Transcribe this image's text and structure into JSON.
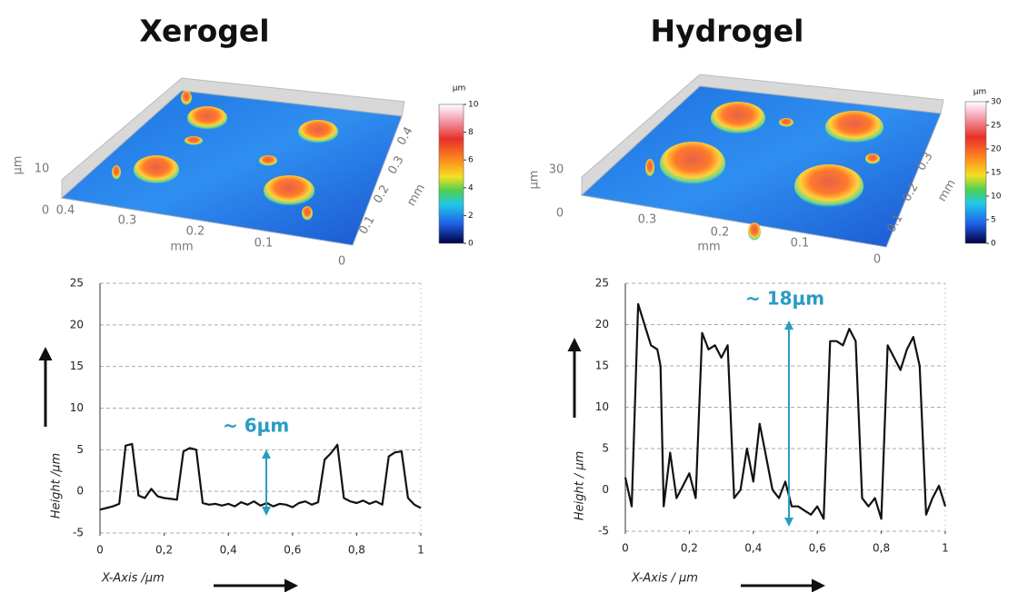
{
  "chart_data": [
    {
      "type": "line",
      "title": "Xerogel",
      "surface": {
        "unit_label": "μm",
        "colorbar_lim": [
          0,
          10
        ],
        "colorbar_ticks": [
          0,
          2,
          4,
          6,
          8,
          10
        ],
        "z_label": "μm",
        "z_ticks": [
          10,
          0
        ],
        "x_label": "mm",
        "x_ticks": [
          0.4,
          0.3,
          0.2,
          0.1,
          0
        ],
        "y_label": "mm",
        "y_ticks": [
          0.1,
          0.2,
          0.3,
          0.4
        ]
      },
      "xlabel": "X-Axis /μm",
      "ylabel": "Height /μm",
      "annotation": "~ 6μm",
      "x": [
        0,
        0.02,
        0.04,
        0.06,
        0.08,
        0.1,
        0.12,
        0.14,
        0.16,
        0.18,
        0.2,
        0.22,
        0.24,
        0.26,
        0.28,
        0.3,
        0.32,
        0.34,
        0.36,
        0.38,
        0.4,
        0.42,
        0.44,
        0.46,
        0.48,
        0.5,
        0.52,
        0.54,
        0.56,
        0.58,
        0.6,
        0.62,
        0.64,
        0.66,
        0.68,
        0.7,
        0.72,
        0.74,
        0.76,
        0.78,
        0.8,
        0.82,
        0.84,
        0.86,
        0.88,
        0.9,
        0.92,
        0.94,
        0.96,
        0.98,
        1
      ],
      "values": [
        -2.2,
        -2,
        -1.8,
        -1.5,
        5.5,
        5.7,
        -0.5,
        -0.8,
        0.3,
        -0.6,
        -0.8,
        -0.9,
        -1,
        4.8,
        5.2,
        5,
        -1.4,
        -1.6,
        -1.5,
        -1.7,
        -1.5,
        -1.8,
        -1.3,
        -1.6,
        -1.2,
        -1.7,
        -1.4,
        -1.8,
        -1.5,
        -1.6,
        -1.9,
        -1.4,
        -1.2,
        -1.6,
        -1.3,
        3.8,
        4.6,
        5.6,
        -0.8,
        -1.2,
        -1.4,
        -1.1,
        -1.5,
        -1.2,
        -1.6,
        4.2,
        4.7,
        4.8,
        -0.8,
        -1.6,
        -2
      ],
      "color": "#111111",
      "xlim": [
        0,
        1
      ],
      "ylim": [
        -5,
        25
      ],
      "xticks": [
        0,
        {
          "value": 0.2,
          "label": "0,2"
        },
        {
          "value": 0.4,
          "label": "0,4"
        },
        {
          "value": 0.6,
          "label": "0,6"
        },
        {
          "value": 0.8,
          "label": "0,8"
        },
        1
      ],
      "yticks": [
        -5,
        0,
        5,
        10,
        15,
        20,
        25
      ],
      "grid": true
    },
    {
      "type": "line",
      "title": "Hydrogel",
      "surface": {
        "unit_label": "μm",
        "colorbar_lim": [
          0,
          30
        ],
        "colorbar_ticks": [
          0,
          5,
          10,
          15,
          20,
          25,
          30
        ],
        "z_label": "μm",
        "z_ticks": [
          30,
          0
        ],
        "x_label": "mm",
        "x_ticks": [
          0.3,
          0.2,
          0.1,
          0
        ],
        "y_label": "mm",
        "y_ticks": [
          0.1,
          0.2,
          0.3
        ]
      },
      "xlabel": "X-Axis / μm",
      "ylabel": "Height / μm",
      "annotation": "~ 18μm",
      "x": [
        0,
        0.02,
        0.04,
        0.06,
        0.08,
        0.1,
        0.11,
        0.12,
        0.14,
        0.16,
        0.18,
        0.2,
        0.22,
        0.24,
        0.26,
        0.28,
        0.3,
        0.32,
        0.34,
        0.36,
        0.38,
        0.4,
        0.42,
        0.44,
        0.46,
        0.48,
        0.5,
        0.52,
        0.54,
        0.56,
        0.58,
        0.6,
        0.62,
        0.64,
        0.66,
        0.68,
        0.7,
        0.72,
        0.74,
        0.76,
        0.78,
        0.8,
        0.82,
        0.84,
        0.86,
        0.88,
        0.9,
        0.92,
        0.94,
        0.96,
        0.98,
        1
      ],
      "values": [
        1.5,
        -2,
        22.5,
        20,
        17.5,
        17,
        15,
        -2,
        4.5,
        -1,
        0.5,
        2,
        -1,
        19,
        17,
        17.5,
        16,
        17.5,
        -1,
        0,
        5,
        1,
        8,
        4,
        0,
        -1,
        1,
        -2,
        -2,
        -2.5,
        -3,
        -2,
        -3.5,
        18,
        18,
        17.5,
        19.5,
        18,
        -1,
        -2,
        -1,
        -3.5,
        17.5,
        16,
        14.5,
        17,
        18.5,
        15,
        -3,
        -1,
        0.5,
        -2
      ],
      "color": "#111111",
      "xlim": [
        0,
        1
      ],
      "ylim": [
        -5,
        25
      ],
      "xticks": [
        0,
        {
          "value": 0.2,
          "label": "0,2"
        },
        {
          "value": 0.4,
          "label": "0,4"
        },
        {
          "value": 0.6,
          "label": "0,6"
        },
        {
          "value": 0.8,
          "label": "0,8"
        },
        1
      ],
      "yticks": [
        -5,
        0,
        5,
        10,
        15,
        20,
        25
      ],
      "grid": true
    }
  ]
}
